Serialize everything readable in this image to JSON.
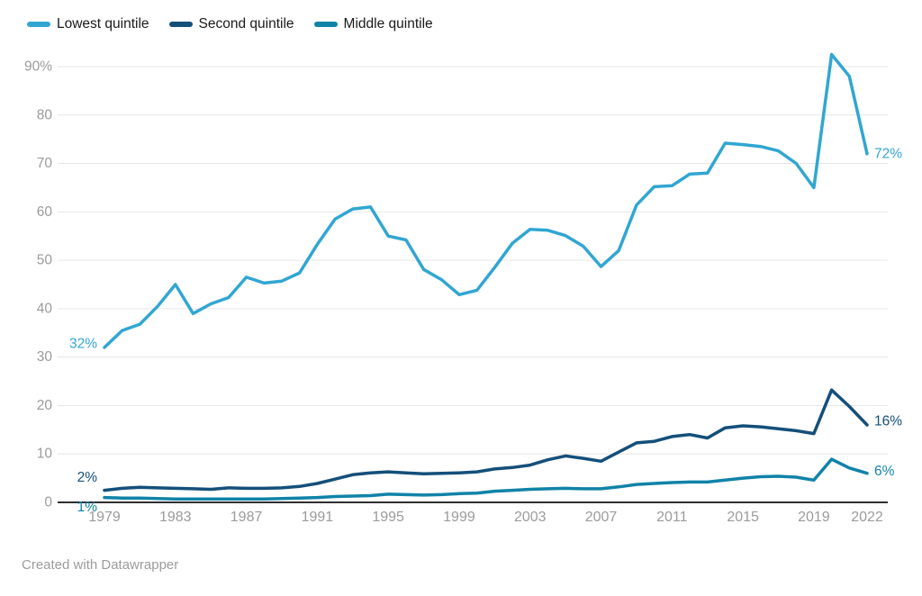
{
  "footer": {
    "credit": "Created with Datawrapper"
  },
  "chart_data": {
    "type": "line",
    "title": "",
    "xlabel": "",
    "ylabel": "",
    "grid": true,
    "legend_position": "top-left",
    "background": "#ffffff",
    "axis_text_color": "#9b9b9b",
    "gridline_color": "#e6e6e6",
    "zero_line_color": "#2f2f2f",
    "x_range": [
      1979,
      2022
    ],
    "ylim": [
      0,
      93
    ],
    "x_ticks": [
      {
        "v": 1979,
        "label": "1979"
      },
      {
        "v": 1983,
        "label": "1983"
      },
      {
        "v": 1987,
        "label": "1987"
      },
      {
        "v": 1991,
        "label": "1991"
      },
      {
        "v": 1995,
        "label": "1995"
      },
      {
        "v": 1999,
        "label": "1999"
      },
      {
        "v": 2003,
        "label": "2003"
      },
      {
        "v": 2007,
        "label": "2007"
      },
      {
        "v": 2011,
        "label": "2011"
      },
      {
        "v": 2015,
        "label": "2015"
      },
      {
        "v": 2019,
        "label": "2019"
      },
      {
        "v": 2022,
        "label": "2022"
      }
    ],
    "y_ticks": [
      {
        "v": 0,
        "label": "0"
      },
      {
        "v": 10,
        "label": "10"
      },
      {
        "v": 20,
        "label": "20"
      },
      {
        "v": 30,
        "label": "30"
      },
      {
        "v": 40,
        "label": "40"
      },
      {
        "v": 50,
        "label": "50"
      },
      {
        "v": 60,
        "label": "60"
      },
      {
        "v": 70,
        "label": "70"
      },
      {
        "v": 80,
        "label": "80"
      },
      {
        "v": 90,
        "label": "90%"
      }
    ],
    "series": [
      {
        "name": "Lowest quintile",
        "color": "#31a6d2",
        "start_label": {
          "text": "32%",
          "dx": -8,
          "dy": -4
        },
        "end_label": {
          "text": "72%",
          "dx": 8,
          "dy": 0
        },
        "values": [
          32,
          35.5,
          36.8,
          40.5,
          45,
          39,
          41,
          42.3,
          46.5,
          45.3,
          45.7,
          47.4,
          53.3,
          58.5,
          60.6,
          61,
          55,
          54.2,
          48.1,
          46,
          42.9,
          43.8,
          48.5,
          53.5,
          56.4,
          56.2,
          55.1,
          52.9,
          48.7,
          52,
          61.4,
          65.2,
          65.4,
          67.8,
          68,
          74.2,
          73.9,
          73.5,
          72.6,
          70,
          65,
          92.5,
          88,
          72
        ]
      },
      {
        "name": "Second quintile",
        "color": "#144f7a",
        "start_label": {
          "text": "2%",
          "dx": -8,
          "dy": -14
        },
        "end_label": {
          "text": "16%",
          "dx": 8,
          "dy": -4
        },
        "values": [
          2.5,
          2.9,
          3.1,
          3.0,
          2.9,
          2.8,
          2.7,
          3.0,
          2.9,
          2.9,
          3.0,
          3.3,
          3.9,
          4.8,
          5.7,
          6.1,
          6.3,
          6.1,
          5.9,
          6.0,
          6.1,
          6.3,
          6.9,
          7.2,
          7.7,
          8.8,
          9.6,
          9.1,
          8.5,
          10.4,
          12.3,
          12.6,
          13.6,
          14.0,
          13.3,
          15.4,
          15.8,
          15.6,
          15.2,
          14.8,
          14.2,
          23.2,
          19.8,
          16
        ]
      },
      {
        "name": "Middle quintile",
        "color": "#1083a8",
        "start_label": {
          "text": "1%",
          "dx": -8,
          "dy": 11
        },
        "end_label": {
          "text": "6%",
          "dx": 8,
          "dy": -2
        },
        "values": [
          1.0,
          0.9,
          0.9,
          0.8,
          0.7,
          0.7,
          0.7,
          0.7,
          0.7,
          0.7,
          0.8,
          0.9,
          1.0,
          1.2,
          1.3,
          1.4,
          1.7,
          1.6,
          1.5,
          1.6,
          1.8,
          1.9,
          2.3,
          2.5,
          2.7,
          2.8,
          2.9,
          2.8,
          2.8,
          3.2,
          3.7,
          3.9,
          4.1,
          4.2,
          4.2,
          4.6,
          5.0,
          5.3,
          5.4,
          5.2,
          4.6,
          8.9,
          7.1,
          6
        ]
      }
    ]
  }
}
